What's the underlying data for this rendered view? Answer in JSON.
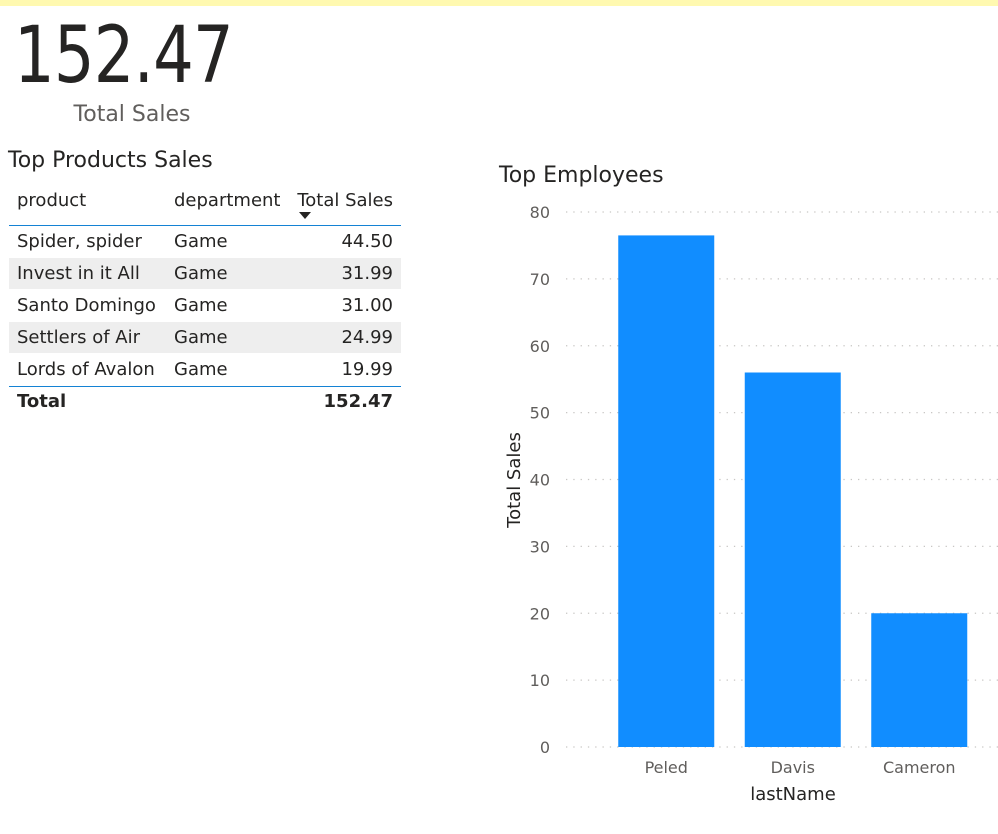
{
  "card": {
    "value": "152.47",
    "label": "Total Sales"
  },
  "table": {
    "title": "Top Products Sales",
    "columns": [
      "product",
      "department",
      "Total Sales"
    ],
    "sort_column": "Total Sales",
    "sort_direction": "descending",
    "rows": [
      [
        "Spider, spider",
        "Game",
        "44.50"
      ],
      [
        "Invest in it All",
        "Game",
        "31.99"
      ],
      [
        "Santo Domingo",
        "Game",
        "31.00"
      ],
      [
        "Settlers of Air",
        "Game",
        "24.99"
      ],
      [
        "Lords of Avalon",
        "Game",
        "19.99"
      ]
    ],
    "total_label": "Total",
    "total_value": "152.47"
  },
  "chart": {
    "title": "Top Employees"
  },
  "chart_data": {
    "type": "bar",
    "title": "Top Employees",
    "categories": [
      "Peled",
      "Davis",
      "Cameron"
    ],
    "values": [
      76.5,
      56,
      20
    ],
    "xlabel": "lastName",
    "ylabel": "Total Sales",
    "ylim": [
      0,
      80
    ],
    "yticks": [
      0,
      10,
      20,
      30,
      40,
      50,
      60,
      70,
      80
    ],
    "grid": true,
    "bar_color": "#118dff"
  },
  "colors": {
    "accent": "#1482d4",
    "bar": "#118dff",
    "topbar": "#fff9b0"
  }
}
